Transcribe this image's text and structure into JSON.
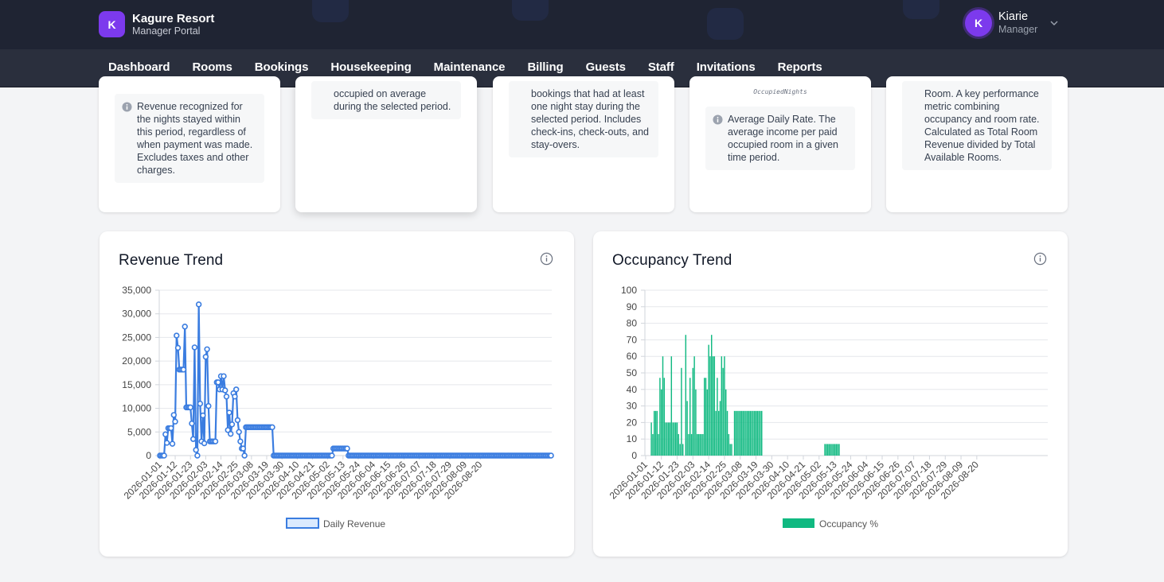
{
  "brand": {
    "initial": "K",
    "name": "Kagure Resort",
    "subtitle": "Manager Portal"
  },
  "user": {
    "initial": "K",
    "name": "Kiarie",
    "role": "Manager"
  },
  "nav": {
    "items": [
      "Dashboard",
      "Rooms",
      "Bookings",
      "Housekeeping",
      "Maintenance",
      "Billing",
      "Guests",
      "Staff",
      "Invitations",
      "Reports"
    ],
    "active": "Reports"
  },
  "metrics": {
    "revenue_note": "Revenue recognized for the nights stayed within this period, regardless of when payment was made. Excludes taxes and other charges.",
    "occupancy_note": "occupied on average during the selected period.",
    "bookings_note": "bookings that had at least one night stay during the selected period. Includes check-ins, check-outs, and stay-overs.",
    "adr_formula": "OccupiedNights",
    "adr_note": "Average Daily Rate. The average income per paid occupied room in a given time period.",
    "revpar_note": "Room. A key performance metric combining occupancy and room rate. Calculated as Total Room Revenue divided by Total Available Rooms."
  },
  "colors": {
    "revenue": "#3b7de0",
    "revenue_fill": "#dbeafe",
    "occupancy": "#10b981",
    "header": "#1f2433",
    "accent": "#7c3aed"
  },
  "icons": {
    "info": "info-icon",
    "chevron": "chevron-down-icon"
  },
  "chart_data": [
    {
      "type": "line",
      "title": "Revenue Trend",
      "xlabel": "",
      "ylabel": "",
      "ylim": [
        0,
        35000
      ],
      "yticks": [
        "0",
        "5,000",
        "10,000",
        "15,000",
        "20,000",
        "25,000",
        "30,000",
        "35,000"
      ],
      "xticks": [
        "2026-01-01",
        "2026-01-12",
        "2026-01-23",
        "2026-02-03",
        "2026-02-14",
        "2026-02-25",
        "2026-03-08",
        "2026-03-19",
        "2026-03-30",
        "2026-04-10",
        "2026-04-21",
        "2026-05-02",
        "2026-05-13",
        "2026-05-24",
        "2026-06-04",
        "2026-06-15",
        "2026-06-26",
        "2026-07-07",
        "2026-07-18",
        "2026-07-29",
        "2026-08-09",
        "2026-08-20"
      ],
      "legend": "bottom",
      "grid": true,
      "series": [
        {
          "name": "Daily Revenue",
          "x_start": "2026-01-01",
          "values": [
            0,
            0,
            0,
            0,
            4500,
            2700,
            5800,
            5800,
            5800,
            2500,
            8600,
            7200,
            25400,
            22800,
            18200,
            18200,
            18200,
            18200,
            27300,
            10200,
            10200,
            10200,
            10200,
            6800,
            3500,
            22900,
            1200,
            0,
            32000,
            11000,
            3000,
            8500,
            2600,
            20900,
            22500,
            10500,
            3000,
            3000,
            3000,
            3000,
            3000,
            15500,
            15500,
            14000,
            16800,
            14000,
            16800,
            13800,
            12500,
            5400,
            9100,
            4600,
            6600,
            13200,
            12500,
            14000,
            7500,
            5000,
            3000,
            1500,
            1500,
            0,
            6000,
            6000,
            6000,
            6000,
            6000,
            6000,
            6000,
            6000,
            6000,
            6000,
            6000,
            6000,
            6000,
            6000,
            6000,
            6000,
            6000,
            6000,
            6000,
            6000,
            0,
            0,
            0,
            0,
            0,
            0,
            0,
            0,
            0,
            0,
            0,
            0,
            0,
            0,
            0,
            0,
            0,
            0,
            0,
            0,
            0,
            0,
            0,
            0,
            0,
            0,
            0,
            0,
            0,
            0,
            0,
            0,
            0,
            0,
            0,
            0,
            0,
            0,
            0,
            0,
            0,
            0,
            0,
            1500,
            1500,
            1500,
            1500,
            1500,
            1500,
            1500,
            1500,
            1500,
            1500,
            1500,
            0,
            0,
            0,
            0,
            0,
            0,
            0,
            0,
            0,
            0,
            0,
            0,
            0,
            0,
            0,
            0,
            0,
            0,
            0,
            0,
            0,
            0,
            0,
            0,
            0,
            0,
            0,
            0,
            0,
            0,
            0,
            0,
            0,
            0,
            0,
            0,
            0,
            0,
            0,
            0,
            0,
            0,
            0,
            0,
            0,
            0,
            0,
            0,
            0,
            0,
            0,
            0,
            0,
            0,
            0,
            0,
            0,
            0,
            0,
            0,
            0,
            0,
            0,
            0,
            0,
            0,
            0,
            0,
            0,
            0,
            0,
            0,
            0,
            0,
            0,
            0,
            0,
            0,
            0,
            0,
            0,
            0,
            0,
            0,
            0,
            0,
            0,
            0,
            0,
            0,
            0,
            0,
            0,
            0,
            0,
            0,
            0,
            0,
            0,
            0,
            0,
            0,
            0,
            0,
            0,
            0,
            0,
            0,
            0,
            0,
            0,
            0,
            0,
            0,
            0,
            0,
            0,
            0,
            0,
            0,
            0,
            0,
            0,
            0,
            0,
            0,
            0,
            0,
            0,
            0,
            0,
            0,
            0,
            0,
            0,
            0,
            0,
            0,
            0,
            0,
            0,
            0,
            0,
            0,
            0,
            0,
            0
          ]
        }
      ]
    },
    {
      "type": "bar",
      "title": "Occupancy Trend",
      "xlabel": "",
      "ylabel": "",
      "ylim": [
        0,
        100
      ],
      "yticks": [
        "0",
        "10",
        "20",
        "30",
        "40",
        "50",
        "60",
        "70",
        "80",
        "90",
        "100"
      ],
      "xticks": [
        "2026-01-01",
        "2026-01-12",
        "2026-01-23",
        "2026-02-03",
        "2026-02-14",
        "2026-02-25",
        "2026-03-08",
        "2026-03-19",
        "2026-03-30",
        "2026-04-10",
        "2026-04-21",
        "2026-05-02",
        "2026-05-13",
        "2026-05-24",
        "2026-06-04",
        "2026-06-15",
        "2026-06-26",
        "2026-07-07",
        "2026-07-18",
        "2026-07-29",
        "2026-08-09",
        "2026-08-20"
      ],
      "legend": "bottom",
      "grid": true,
      "series": [
        {
          "name": "Occupancy %",
          "x_start": "2026-01-01",
          "values": [
            0,
            0,
            0,
            0,
            20,
            13,
            27,
            27,
            27,
            13,
            47,
            40,
            60,
            47,
            20,
            20,
            20,
            20,
            60,
            20,
            20,
            20,
            20,
            13,
            7,
            53,
            7,
            0,
            73,
            33,
            13,
            47,
            13,
            53,
            60,
            40,
            13,
            13,
            13,
            13,
            13,
            47,
            47,
            40,
            67,
            60,
            73,
            60,
            60,
            27,
            47,
            27,
            33,
            60,
            53,
            60,
            40,
            27,
            13,
            7,
            7,
            0,
            27,
            27,
            27,
            27,
            27,
            27,
            27,
            27,
            27,
            27,
            27,
            27,
            27,
            27,
            27,
            27,
            27,
            27,
            27,
            27,
            0,
            0,
            0,
            0,
            0,
            0,
            0,
            0,
            0,
            0,
            0,
            0,
            0,
            0,
            0,
            0,
            0,
            0,
            0,
            0,
            0,
            0,
            0,
            0,
            0,
            0,
            0,
            0,
            0,
            0,
            0,
            0,
            0,
            0,
            0,
            0,
            0,
            0,
            0,
            0,
            0,
            0,
            0,
            7,
            7,
            7,
            7,
            7,
            7,
            7,
            7,
            7,
            7,
            7,
            0,
            0,
            0,
            0,
            0,
            0,
            0,
            0,
            0,
            0,
            0,
            0,
            0,
            0,
            0,
            0,
            0,
            0,
            0,
            0,
            0,
            0,
            0,
            0,
            0,
            0,
            0,
            0,
            0,
            0,
            0,
            0,
            0,
            0,
            0,
            0,
            0,
            0,
            0,
            0,
            0,
            0,
            0,
            0,
            0,
            0,
            0,
            0,
            0,
            0,
            0,
            0,
            0,
            0,
            0,
            0,
            0,
            0,
            0,
            0,
            0,
            0,
            0,
            0,
            0,
            0,
            0,
            0,
            0,
            0,
            0,
            0,
            0,
            0,
            0,
            0,
            0,
            0,
            0,
            0,
            0,
            0,
            0,
            0,
            0,
            0,
            0,
            0,
            0,
            0,
            0,
            0,
            0,
            0,
            0,
            0,
            0,
            0,
            0,
            0,
            0,
            0,
            0,
            0,
            0,
            0,
            0,
            0,
            0,
            0,
            0,
            0,
            0,
            0,
            0,
            0,
            0,
            0,
            0,
            0,
            0,
            0,
            0,
            0,
            0,
            0,
            0,
            0,
            0,
            0,
            0,
            0,
            0,
            0,
            0,
            0,
            0,
            0,
            0,
            0,
            0,
            0,
            0,
            0,
            0
          ]
        }
      ]
    }
  ]
}
